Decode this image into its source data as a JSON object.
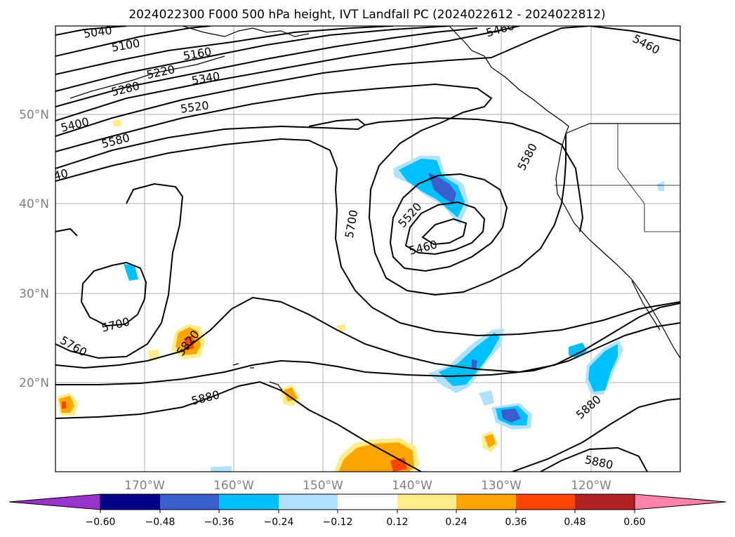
{
  "title": "2024022300 F000 500 hPa height, IVT Landfall PC (2024022612 - 2024022812)",
  "lat_labels": [
    "50°N",
    "40°N",
    "30°N",
    "20°N"
  ],
  "lon_labels": [
    "170°W",
    "160°W",
    "150°W",
    "140°W",
    "130°W",
    "120°W"
  ],
  "contour_labels": {
    "c5040": "5040",
    "c5100": "5100",
    "c5160": "5160",
    "c5220": "5220",
    "c5280": "5280",
    "c5340": "5340",
    "c5400": "5400",
    "c5460_ne": "5460",
    "c5460_top": "5460",
    "c5520_n": "5520",
    "c5580_w": "5580",
    "c5640": "40",
    "c5580_e": "5580",
    "c5700_c": "5700",
    "c5520_low": "5520",
    "c5460_low": "5460",
    "c5700_w": "5700",
    "c5760": "5760",
    "c5820": "5820",
    "c5880_w": "5880",
    "c5880_e": "5880",
    "c5880_se": "5880"
  },
  "colorbar": {
    "ticks": [
      "−0.60",
      "−0.48",
      "−0.36",
      "−0.24",
      "−0.12",
      "0.12",
      "0.24",
      "0.36",
      "0.48",
      "0.60"
    ],
    "colors": [
      "#9933cc",
      "#00008b",
      "#3a5fcd",
      "#00bfff",
      "#b0e2ff",
      "#ffffff",
      "#ffec8b",
      "#ffa500",
      "#ff4500",
      "#b22222",
      "#ff82ab"
    ]
  },
  "colors": {
    "pc_neg_light": "#b0e2ff",
    "pc_neg_mid": "#00bfff",
    "pc_neg_strong": "#3a5fcd",
    "pc_pos_light": "#ffec8b",
    "pc_pos_mid": "#ffa500",
    "pc_pos_strong": "#ff4500",
    "contour": "#000000",
    "grid": "#b0b0b0"
  }
}
